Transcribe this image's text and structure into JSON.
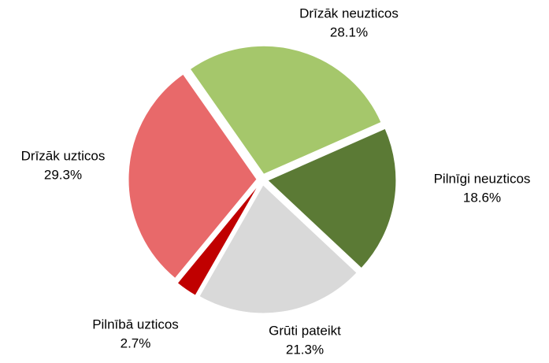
{
  "chart_data": {
    "type": "pie",
    "categories": [
      "Drīzāk neuzticos",
      "Pilnīgi neuzticos",
      "Grūti pateikt",
      "Pilnībā uzticos",
      "Drīzāk uzticos"
    ],
    "values": [
      28.1,
      18.6,
      21.3,
      2.7,
      29.3
    ],
    "value_labels": [
      "28.1%",
      "18.6%",
      "21.3%",
      "2.7%",
      "29.3%"
    ],
    "colors": [
      "#a5c76b",
      "#5b7a35",
      "#d9d9d9",
      "#c00000",
      "#e8696a"
    ]
  }
}
